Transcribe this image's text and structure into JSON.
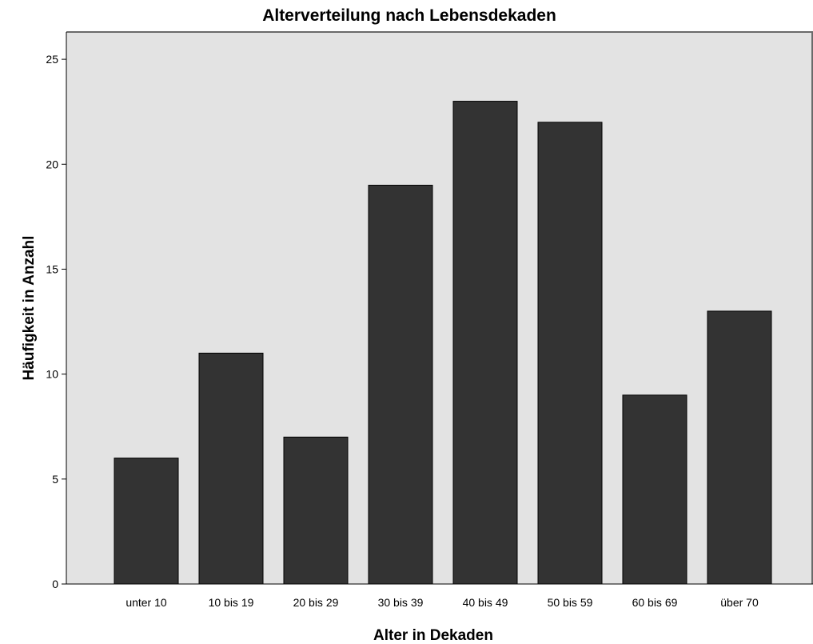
{
  "chart_data": {
    "type": "bar",
    "title": "Alterverteilung nach Lebensdekaden",
    "xlabel": "Alter in Dekaden",
    "ylabel": "Häufigkeit in Anzahl",
    "categories": [
      "unter 10",
      "10 bis 19",
      "20 bis 29",
      "30 bis 39",
      "40 bis 49",
      "50 bis 59",
      "60 bis 69",
      "über 70"
    ],
    "values": [
      6,
      11,
      7,
      19,
      23,
      22,
      9,
      13
    ],
    "ylim": [
      0,
      26.3
    ],
    "yticks": [
      0,
      5,
      10,
      15,
      20,
      25
    ],
    "grid": false,
    "colors": {
      "plot_background": "#e3e3e3",
      "bar_fill": "#333333",
      "axis": "#000000",
      "frame": "#6a6a6a"
    }
  }
}
